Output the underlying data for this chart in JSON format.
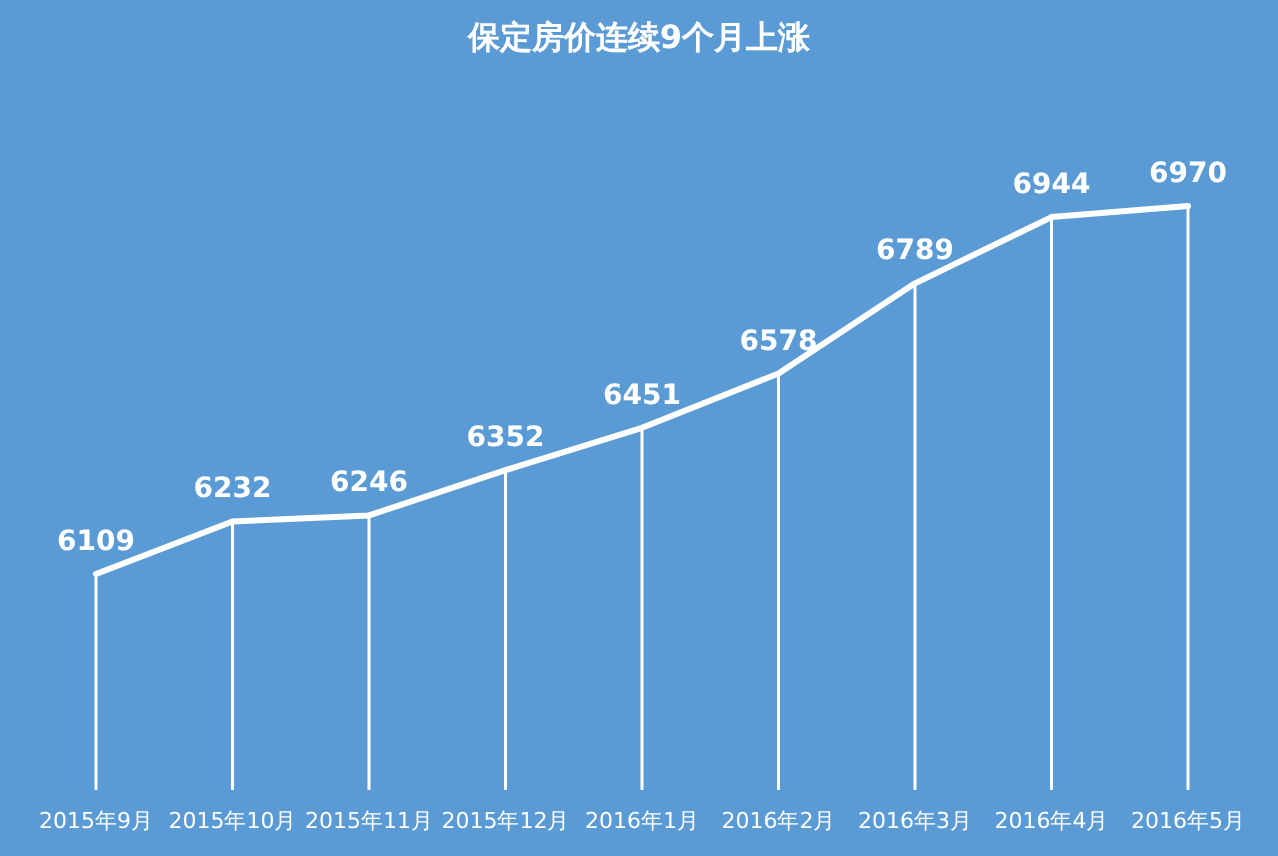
{
  "chart_data": {
    "type": "line",
    "title": "保定房价连续9个月上涨",
    "categories": [
      "2015年9月",
      "2015年10月",
      "2015年11月",
      "2015年12月",
      "2016年1月",
      "2016年2月",
      "2016年3月",
      "2016年4月",
      "2016年5月"
    ],
    "series": [
      {
        "color": "#ffffff",
        "values": [
          6109,
          6232,
          6246,
          6352,
          6451,
          6578,
          6789,
          6944,
          6970
        ]
      }
    ],
    "data_labels": true,
    "grid": "x",
    "line_style": "solid"
  }
}
